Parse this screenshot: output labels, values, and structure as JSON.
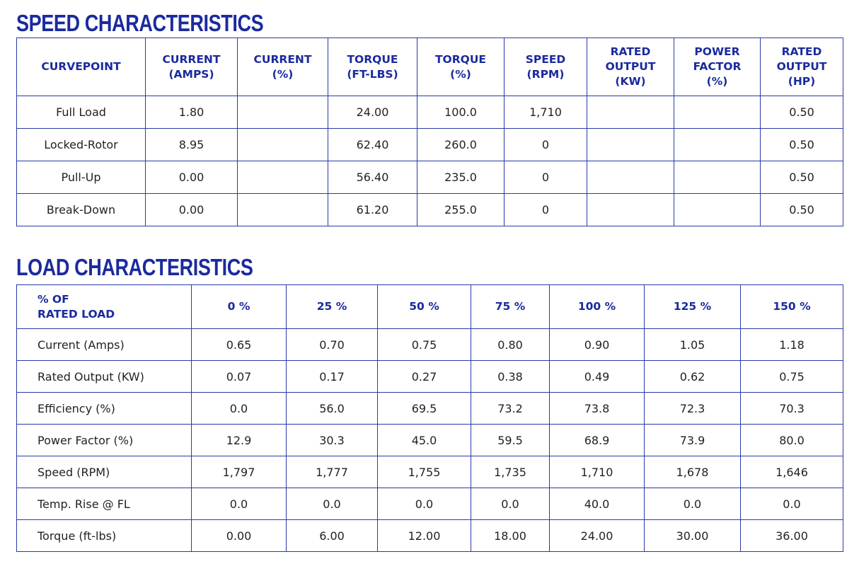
{
  "speed_characteristics": {
    "title": "SPEED CHARACTERISTICS",
    "headers": [
      "CURVEPOINT",
      "CURRENT\n(AMPS)",
      "CURRENT\n(%)",
      "TORQUE\n(FT-LBS)",
      "TORQUE\n(%)",
      "SPEED\n(RPM)",
      "RATED\nOUTPUT\n(KW)",
      "POWER\nFACTOR\n(%)",
      "RATED\nOUTPUT\n(HP)"
    ],
    "rows": [
      [
        "Full Load",
        "1.80",
        null,
        "24.00",
        "100.0",
        "1,710",
        null,
        null,
        "0.50"
      ],
      [
        "Locked-Rotor",
        "8.95",
        null,
        "62.40",
        "260.0",
        "0",
        null,
        null,
        "0.50"
      ],
      [
        "Pull-Up",
        "0.00",
        null,
        "56.40",
        "235.0",
        "0",
        null,
        null,
        "0.50"
      ],
      [
        "Break-Down",
        "0.00",
        null,
        "61.20",
        "255.0",
        "0",
        null,
        null,
        "0.50"
      ]
    ]
  },
  "load_characteristics": {
    "title": "LOAD CHARACTERISTICS",
    "headers": [
      "% OF\nRATED LOAD",
      "0 %",
      "25 %",
      "50 %",
      "75 %",
      "100 %",
      "125 %",
      "150 %"
    ],
    "rows": [
      [
        "Current (Amps)",
        "0.65",
        "0.70",
        "0.75",
        "0.80",
        "0.90",
        "1.05",
        "1.18"
      ],
      [
        "Rated Output (KW)",
        "0.07",
        "0.17",
        "0.27",
        "0.38",
        "0.49",
        "0.62",
        "0.75"
      ],
      [
        "Efficiency (%)",
        "0.0",
        "56.0",
        "69.5",
        "73.2",
        "73.8",
        "72.3",
        "70.3"
      ],
      [
        "Power Factor (%)",
        "12.9",
        "30.3",
        "45.0",
        "59.5",
        "68.9",
        "73.9",
        "80.0"
      ],
      [
        "Speed (RPM)",
        "1,797",
        "1,777",
        "1,755",
        "1,735",
        "1,710",
        "1,678",
        "1,646"
      ],
      [
        "Temp. Rise @ FL",
        "0.0",
        "0.0",
        "0.0",
        "0.0",
        "40.0",
        "0.0",
        "0.0"
      ],
      [
        "Torque (ft-lbs)",
        "0.00",
        "6.00",
        "12.00",
        "18.00",
        "24.00",
        "30.00",
        "36.00"
      ]
    ]
  }
}
